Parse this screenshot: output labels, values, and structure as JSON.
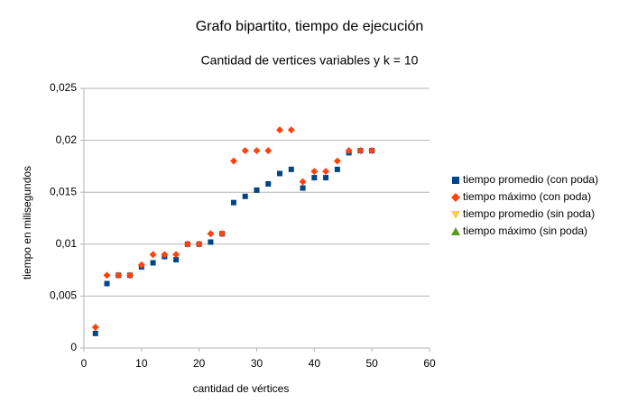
{
  "chart_data": {
    "type": "scatter",
    "title": "Grafo bipartito, tiempo de ejecución",
    "subtitle": "Cantidad de vertices variables y k = 10",
    "x_label": "cantidad de vértices",
    "y_label": "tiempo en milisegundos",
    "x": [
      2,
      4,
      6,
      8,
      10,
      12,
      14,
      16,
      18,
      20,
      22,
      24,
      26,
      28,
      30,
      32,
      34,
      36,
      38,
      40,
      42,
      44,
      46,
      48,
      50
    ],
    "series": [
      {
        "name": "tiempo promedio (con poda)",
        "color": "#004586",
        "marker": "square",
        "values": [
          0.0014,
          0.0062,
          0.007,
          0.007,
          0.0078,
          0.0082,
          0.0088,
          0.0085,
          0.01,
          0.01,
          0.0102,
          0.011,
          0.014,
          0.0146,
          0.0152,
          0.0158,
          0.0168,
          0.0172,
          0.0154,
          0.0164,
          0.0164,
          0.0172,
          0.0188,
          0.019,
          0.019
        ]
      },
      {
        "name": "tiempo máximo (con poda)",
        "color": "#ff420e",
        "marker": "diamond",
        "values": [
          0.002,
          0.007,
          0.007,
          0.007,
          0.008,
          0.009,
          0.009,
          0.009,
          0.01,
          0.01,
          0.011,
          0.011,
          0.018,
          0.019,
          0.019,
          0.019,
          0.021,
          0.021,
          0.016,
          0.017,
          0.017,
          0.018,
          0.019,
          0.019,
          0.019
        ]
      },
      {
        "name": "tiempo promedio (sin poda)",
        "color": "#ffd320",
        "marker": "triangle-down",
        "values": [
          null,
          null,
          null,
          null,
          null,
          null,
          null,
          null,
          null,
          null,
          null,
          null,
          null,
          null,
          null,
          null,
          null,
          null,
          null,
          null,
          null,
          null,
          null,
          null,
          null
        ]
      },
      {
        "name": "tiempo máximo (sin poda)",
        "color": "#579d1c",
        "marker": "triangle-up",
        "values": [
          null,
          null,
          null,
          null,
          null,
          null,
          null,
          null,
          null,
          null,
          null,
          null,
          null,
          null,
          null,
          null,
          null,
          null,
          null,
          null,
          null,
          null,
          null,
          null,
          null
        ]
      }
    ],
    "xlim": [
      0,
      60
    ],
    "xticks": [
      0,
      10,
      20,
      30,
      40,
      50,
      60
    ],
    "ylim": [
      0,
      0.025
    ],
    "yticks": [
      0,
      {
        "value": 0.005,
        "label": "0,005"
      },
      {
        "value": 0.01,
        "label": "0,01"
      },
      {
        "value": 0.015,
        "label": "0,015"
      },
      {
        "value": 0.02,
        "label": "0,02"
      },
      {
        "value": 0.025,
        "label": "0,025"
      }
    ],
    "grid": true,
    "legend": "right"
  }
}
